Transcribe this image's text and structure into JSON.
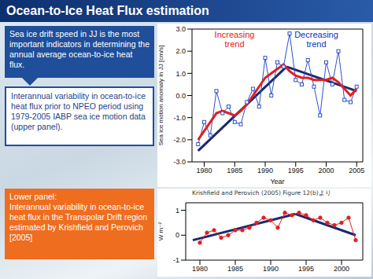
{
  "title": "Ocean-to-Ice Heat Flux estimation",
  "text_boxes": [
    "Sea ice drift speed in JJ is the most important indicators in determining the annual average ocean-to-ice heat flux.",
    "Interannual variability in ocean-to-ice heat flux prior to NPEO period using 1979-2005 IABP sea ice motion data (upper panel).",
    "Lower panel:\nInterannual variability in ocean-to-ice heat flux in the Transpolar Drift region estimated by Krishfield and Perovich [2005]"
  ],
  "chart_data": [
    {
      "type": "line",
      "x": [
        1979,
        1980,
        1981,
        1982,
        1983,
        1984,
        1985,
        1986,
        1987,
        1988,
        1989,
        1990,
        1991,
        1992,
        1993,
        1994,
        1995,
        1996,
        1997,
        1998,
        1999,
        2000,
        2001,
        2002,
        2003,
        2004,
        2005
      ],
      "series": [
        {
          "color": "#3050c8",
          "marker": "square",
          "line_style": "thin",
          "values": [
            -2.2,
            -1.2,
            -1.8,
            0.2,
            -0.8,
            -0.5,
            -1.2,
            -1.3,
            -0.3,
            0.3,
            -0.5,
            1.7,
            0.0,
            1.5,
            1.3,
            2.8,
            0.7,
            0.5,
            1.6,
            0.4,
            -0.9,
            1.5,
            0.5,
            2.0,
            -0.2,
            -0.3,
            0.4
          ]
        },
        {
          "color": "#e02020",
          "marker": "none",
          "line_style": "thick",
          "values": [
            -2.0,
            -1.6,
            -1.2,
            -0.8,
            -0.7,
            -0.8,
            -0.9,
            -0.7,
            -0.4,
            0.0,
            0.4,
            0.8,
            1.0,
            1.2,
            1.4,
            1.1,
            0.9,
            0.8,
            0.8,
            0.7,
            0.7,
            0.7,
            0.8,
            0.6,
            0.3,
            0.0,
            0.3
          ]
        }
      ],
      "xlim": [
        1978,
        2006
      ],
      "xticks": [
        1980,
        1985,
        1990,
        1995,
        2000,
        2005
      ],
      "ylim": [
        -3,
        3
      ],
      "yticks": [
        {
          "value": -3,
          "label": "-3.0"
        },
        {
          "value": -2,
          "label": "-2.0"
        },
        {
          "value": -1,
          "label": "-1.0"
        },
        {
          "value": 0,
          "label": "0.0"
        },
        {
          "value": 1,
          "label": "1.0"
        },
        {
          "value": 2,
          "label": "2.0"
        },
        {
          "value": 3,
          "label": "3.0"
        }
      ],
      "x_label": "Year",
      "y_label": "Sea ice motion anomaly in JJ [cm/s]",
      "grid": false,
      "annotations": [
        {
          "text": "Increasing trend",
          "color": "#e02020"
        },
        {
          "text": "Decreasing trend",
          "color": "#1030c0"
        }
      ],
      "arrows": {
        "color": "#1a2a70",
        "segments": [
          {
            "x": [
              1979,
              1993.5
            ],
            "y": [
              -2.5,
              1.3
            ]
          },
          {
            "x": [
              1993.5,
              2005
            ],
            "y": [
              1.3,
              0.2
            ]
          }
        ]
      }
    },
    {
      "type": "line",
      "caption": "Krishfield and Perovich (2005) Figure 12(b)より",
      "x": [
        1980,
        1981,
        1982,
        1983,
        1984,
        1985,
        1986,
        1987,
        1988,
        1989,
        1990,
        1991,
        1992,
        1993,
        1994,
        1995,
        1996,
        1997,
        1998,
        1999,
        2000,
        2001,
        2002
      ],
      "series": [
        {
          "color": "#e02020",
          "marker": "circle",
          "line_style": "thin",
          "values": [
            -0.3,
            0.1,
            0.2,
            -0.1,
            0.0,
            0.2,
            0.2,
            0.3,
            0.5,
            0.7,
            0.6,
            0.3,
            0.9,
            0.8,
            0.9,
            0.8,
            0.6,
            0.7,
            0.5,
            0.4,
            0.5,
            0.7,
            -0.2
          ]
        }
      ],
      "xlim": [
        1978,
        2003
      ],
      "xticks": [
        1980,
        1985,
        1990,
        1995,
        2000
      ],
      "ylim": [
        -1,
        1.3
      ],
      "yticks": [
        -1,
        0,
        1
      ],
      "y_label": "W m⁻²",
      "grid": false,
      "arrows": {
        "color": "#1a2a70",
        "segments": [
          {
            "x": [
              1979,
              1993.5
            ],
            "y": [
              -0.2,
              0.85
            ]
          },
          {
            "x": [
              1993.5,
              2002
            ],
            "y": [
              0.85,
              0.0
            ]
          }
        ]
      }
    }
  ]
}
